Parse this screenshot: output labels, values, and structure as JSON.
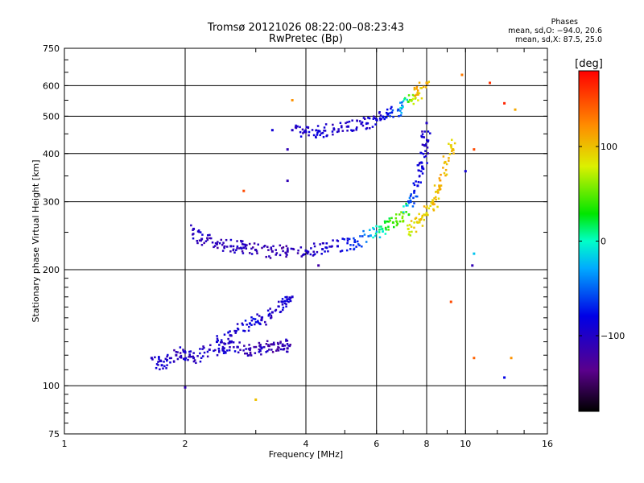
{
  "title": {
    "line1": "Tromsø 20121026 08:22:00–08:23:43",
    "line2": "RwPretec (Bp)"
  },
  "phases": {
    "heading": "Phases",
    "o_line": "mean, sd,O: −94.0, 20.6",
    "x_line": "mean, sd,X:  87.5, 25.0"
  },
  "colorbar": {
    "unit": "[deg]",
    "ticks": [
      {
        "value": 100,
        "label": "100"
      },
      {
        "value": 0,
        "label": "0"
      },
      {
        "value": -100,
        "label": "−100"
      }
    ],
    "range": [
      -180,
      180
    ]
  },
  "chart_data": {
    "type": "scatter",
    "xlabel": "Frequency [MHz]",
    "ylabel": "Stationary phase Virtual Height [km]",
    "xscale": "log",
    "yscale": "log",
    "xlim": [
      1,
      16
    ],
    "ylim": [
      75,
      750
    ],
    "xticks": [
      1,
      2,
      4,
      6,
      8,
      10,
      16
    ],
    "yticks": [
      75,
      100,
      200,
      300,
      400,
      500,
      600,
      750
    ],
    "x_gridlines": [
      2,
      4,
      6,
      8,
      10
    ],
    "y_gridlines": [
      100,
      200,
      300,
      400,
      500,
      600
    ],
    "grid": true,
    "series": [
      {
        "x": [
          1.65,
          1.75,
          1.9,
          2.0,
          2.1,
          2.3,
          2.5,
          2.7,
          2.9,
          3.1,
          3.3,
          3.5,
          3.6
        ],
        "y": [
          118,
          113,
          120,
          122,
          118,
          124,
          125,
          126,
          124,
          125,
          128,
          127,
          125
        ],
        "phase": [
          -100,
          -90,
          -110,
          -95,
          -100,
          -105,
          -95,
          -100,
          -110,
          -100,
          -120,
          -110,
          -115
        ]
      },
      {
        "x": [
          2.4,
          2.6,
          2.9,
          3.1,
          3.3,
          3.5,
          3.7
        ],
        "y": [
          130,
          135,
          145,
          148,
          155,
          165,
          170
        ],
        "phase": [
          -90,
          -100,
          -80,
          -95,
          -100,
          -90,
          -95
        ]
      },
      {
        "x": [
          2.1,
          2.2,
          2.4,
          2.6,
          2.8,
          3.0,
          3.3,
          3.6,
          4.0,
          4.4,
          4.8,
          5.3,
          5.8,
          6.2,
          6.6,
          7.0,
          7.3,
          7.6,
          7.8,
          7.9,
          8.0
        ],
        "y": [
          255,
          240,
          233,
          230,
          228,
          225,
          223,
          223,
          224,
          226,
          230,
          236,
          245,
          255,
          265,
          280,
          300,
          330,
          370,
          420,
          480
        ],
        "phase": [
          -100,
          -105,
          -110,
          -100,
          -105,
          -110,
          -115,
          -110,
          -100,
          -95,
          -90,
          -70,
          -30,
          10,
          40,
          60,
          -60,
          -80,
          -90,
          -95,
          -100
        ]
      },
      {
        "x": [
          7.2,
          7.6,
          8.0,
          8.3,
          8.6,
          8.9,
          9.2
        ],
        "y": [
          255,
          265,
          280,
          300,
          330,
          380,
          420
        ],
        "phase": [
          80,
          90,
          95,
          100,
          105,
          100,
          95
        ]
      },
      {
        "x": [
          3.7,
          4.0,
          4.3,
          4.7,
          5.1,
          5.5,
          6.0,
          6.4,
          6.8,
          7.2,
          7.6,
          8.0
        ],
        "y": [
          460,
          455,
          458,
          462,
          470,
          478,
          490,
          505,
          520,
          545,
          575,
          610
        ],
        "phase": [
          -100,
          -95,
          -90,
          -100,
          -95,
          -100,
          -90,
          -80,
          -60,
          40,
          100,
          110
        ]
      }
    ],
    "outliers": [
      {
        "x": 11.5,
        "y": 610,
        "phase": 160
      },
      {
        "x": 12.5,
        "y": 540,
        "phase": 165
      },
      {
        "x": 13.3,
        "y": 520,
        "phase": 110
      },
      {
        "x": 10.5,
        "y": 410,
        "phase": 150
      },
      {
        "x": 10.0,
        "y": 360,
        "phase": -90
      },
      {
        "x": 10.5,
        "y": 220,
        "phase": -20
      },
      {
        "x": 10.4,
        "y": 205,
        "phase": -110
      },
      {
        "x": 9.2,
        "y": 165,
        "phase": 150
      },
      {
        "x": 10.5,
        "y": 118,
        "phase": 140
      },
      {
        "x": 13.0,
        "y": 118,
        "phase": 120
      },
      {
        "x": 12.5,
        "y": 105,
        "phase": -80
      },
      {
        "x": 3.0,
        "y": 92,
        "phase": 100
      },
      {
        "x": 2.0,
        "y": 99,
        "phase": -110
      },
      {
        "x": 2.8,
        "y": 320,
        "phase": 150
      },
      {
        "x": 3.6,
        "y": 410,
        "phase": -110
      },
      {
        "x": 3.6,
        "y": 340,
        "phase": -110
      },
      {
        "x": 3.7,
        "y": 550,
        "phase": 120
      },
      {
        "x": 3.3,
        "y": 460,
        "phase": -90
      },
      {
        "x": 4.3,
        "y": 205,
        "phase": -120
      },
      {
        "x": 9.8,
        "y": 640,
        "phase": 130
      }
    ]
  }
}
